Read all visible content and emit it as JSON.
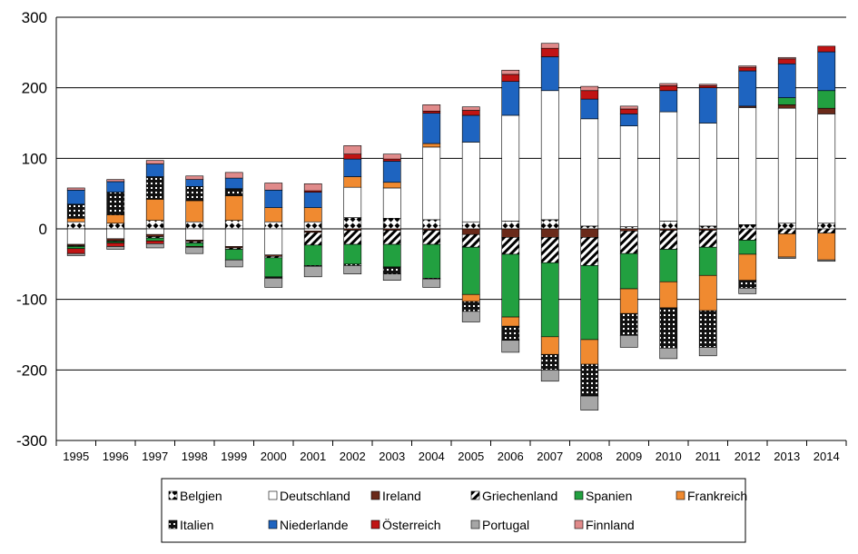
{
  "chart_data": {
    "type": "bar",
    "stacked": true,
    "title": "",
    "xlabel": "",
    "ylabel": "",
    "ylim": [
      -300,
      300
    ],
    "yticks": [
      -300,
      -200,
      -100,
      0,
      100,
      200,
      300
    ],
    "grid": true,
    "legend_position": "bottom",
    "categories": [
      "1995",
      "1996",
      "1997",
      "1998",
      "1999",
      "2000",
      "2001",
      "2002",
      "2003",
      "2004",
      "2005",
      "2006",
      "2007",
      "2008",
      "2009",
      "2010",
      "2011",
      "2012",
      "2013",
      "2014"
    ],
    "series": [
      {
        "name": "Belgien",
        "color": "#ffffff",
        "pattern": "diamond",
        "values": [
          10,
          8,
          12,
          10,
          12,
          10,
          10,
          16,
          15,
          13,
          10,
          11,
          13,
          4,
          3,
          11,
          4,
          6,
          8,
          8
        ]
      },
      {
        "name": "Deutschland",
        "color": "#ffffff",
        "pattern": "none",
        "values": [
          -22,
          -14,
          -8,
          -16,
          -25,
          -37,
          -3,
          43,
          43,
          103,
          113,
          150,
          183,
          152,
          143,
          155,
          146,
          166,
          163,
          155
        ]
      },
      {
        "name": "Ireland",
        "color": "#6a2a1a",
        "pattern": "none",
        "values": [
          -2,
          -3,
          -3,
          -2,
          -2,
          -2,
          -2,
          -2,
          -2,
          -2,
          -8,
          -12,
          -12,
          -12,
          -3,
          -2,
          -2,
          2,
          5,
          8
        ]
      },
      {
        "name": "Griechenland",
        "color": "#ffffff",
        "pattern": "hatch",
        "values": [
          -1,
          -1,
          -2,
          -2,
          -2,
          -2,
          -18,
          -20,
          -20,
          -20,
          -18,
          -24,
          -36,
          -40,
          -32,
          -27,
          -24,
          -16,
          -7,
          -6
        ]
      },
      {
        "name": "Spanien",
        "color": "#22a040",
        "pattern": "none",
        "values": [
          -3,
          -2,
          -4,
          -5,
          -15,
          -27,
          -29,
          -28,
          -32,
          -48,
          -67,
          -89,
          -105,
          -105,
          -50,
          -46,
          -40,
          -20,
          10,
          25
        ]
      },
      {
        "name": "Frankreich",
        "color": "#f08a30",
        "pattern": "none",
        "values": [
          5,
          12,
          30,
          30,
          35,
          20,
          20,
          15,
          8,
          5,
          -10,
          -13,
          -25,
          -35,
          -35,
          -37,
          -50,
          -37,
          -33,
          -38
        ]
      },
      {
        "name": "Italien",
        "color": "#111111",
        "pattern": "grid",
        "values": [
          20,
          32,
          32,
          20,
          10,
          -2,
          -1,
          -2,
          -10,
          -1,
          -14,
          -20,
          -22,
          -45,
          -31,
          -57,
          -52,
          -11,
          0,
          0
        ]
      },
      {
        "name": "Niederlande",
        "color": "#1e64c0",
        "pattern": "none",
        "values": [
          20,
          15,
          18,
          10,
          15,
          25,
          22,
          25,
          30,
          43,
          38,
          48,
          48,
          28,
          17,
          30,
          50,
          50,
          48,
          55
        ]
      },
      {
        "name": "Österreich",
        "color": "#c01414",
        "pattern": "none",
        "values": [
          -7,
          -5,
          -4,
          -1,
          0,
          0,
          2,
          7,
          3,
          3,
          7,
          10,
          12,
          12,
          7,
          7,
          3,
          5,
          7,
          8
        ]
      },
      {
        "name": "Portugal",
        "color": "#a6a6a6",
        "pattern": "none",
        "values": [
          -3,
          -4,
          -6,
          -9,
          -10,
          -13,
          -15,
          -12,
          -9,
          -12,
          -15,
          -17,
          -16,
          -20,
          -17,
          -15,
          -12,
          -8,
          -2,
          -2
        ]
      },
      {
        "name": "Finnland",
        "color": "#e08a8a",
        "pattern": "none",
        "values": [
          3,
          3,
          5,
          5,
          8,
          10,
          10,
          12,
          7,
          9,
          5,
          6,
          7,
          6,
          4,
          3,
          2,
          2,
          2,
          0
        ]
      }
    ]
  }
}
